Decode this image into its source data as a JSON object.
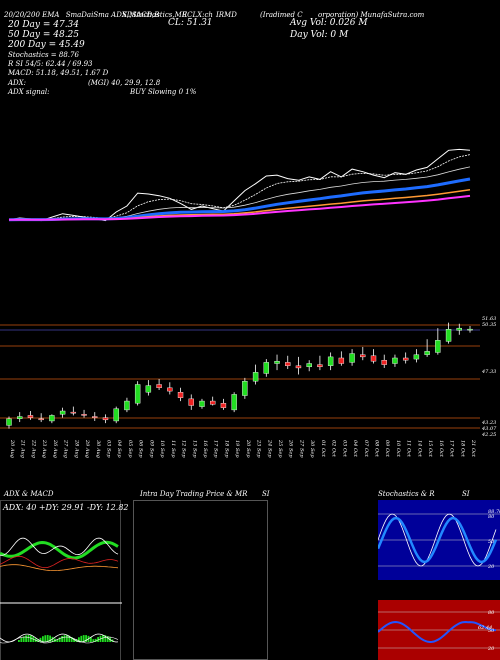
{
  "header": {
    "line1": "20/20/200 EMA",
    "line1_b": "SmaDaiSma ADX,MACD,B",
    "line1_c": "SI,Stochastics,MR",
    "line1_d": "ECLX:ch",
    "line1_e": "IRMD",
    "line1_f": "(Iradimed C",
    "line1_g": "orporation) MunafaSutra.com",
    "cl": "CL: 51.31",
    "ema20": "20 Day = 47.34",
    "ema50": "50 Day = 48.25",
    "ema200": "200 Day = 45.49",
    "stoch": "Stochastics = 88.76",
    "rsi": "R        SI 54/5: 62.44 / 69.93",
    "macd": "MACD: 51.18, 49.51, 1.67 D",
    "adx": "ADX:",
    "adx_vals": "(MGI) 40, 29.9, 12.8",
    "adx_signal": "ADX  signal:",
    "signal": "BUY Slowing 0 1%",
    "avg_vol": "Avg Vol: 0.026  M",
    "day_vol": "Day Vol: 0   M"
  },
  "price_labels": {
    "p1": "51.63",
    "p2": "50.35",
    "p3": "47.33",
    "p4": "43.23",
    "p5": "43.07",
    "p6": "42.25"
  },
  "dates": [
    "20 Aug",
    "21 Aug",
    "22 Aug",
    "23 Aug",
    "26 Aug",
    "27 Aug",
    "28 Aug",
    "29 Aug",
    "30 Aug",
    "03 Sep",
    "04 Sep",
    "05 Sep",
    "06 Sep",
    "09 Sep",
    "10 Sep",
    "11 Sep",
    "12 Sep",
    "13 Sep",
    "16 Sep",
    "17 Sep",
    "18 Sep",
    "19 Sep",
    "20 Sep",
    "23 Sep",
    "24 Sep",
    "25 Sep",
    "26 Sep",
    "27 Sep",
    "30 Sep",
    "01 Oct",
    "02 Oct",
    "03 Oct",
    "04 Oct",
    "07 Oct",
    "08 Oct",
    "09 Oct",
    "10 Oct",
    "11 Oct",
    "14 Oct",
    "15 Oct",
    "16 Oct",
    "17 Oct",
    "18 Oct",
    "21 Oct"
  ],
  "panels": {
    "adx_title": "ADX  & MACD",
    "adx_text": "ADX: 40  +DY: 29.91  -DY: 12.82",
    "intraday_title": "Intra  Day Trading Price  & MR",
    "intraday_si": "SI",
    "stoch_title": "Stochastics & R",
    "stoch_si": "SI",
    "stoch_levels": [
      "88.76",
      "80",
      "50",
      "20"
    ],
    "rsi_levels": [
      "80",
      "62.44",
      "50",
      "20"
    ]
  },
  "chart_data": {
    "type": "candlestick",
    "title": "IRMD (Iradimed Corporation)",
    "categories": [
      "20 Aug",
      "21 Aug",
      "22 Aug",
      "23 Aug",
      "26 Aug",
      "27 Aug",
      "28 Aug",
      "29 Aug",
      "30 Aug",
      "03 Sep",
      "04 Sep",
      "05 Sep",
      "06 Sep",
      "09 Sep",
      "10 Sep",
      "11 Sep",
      "12 Sep",
      "13 Sep",
      "16 Sep",
      "17 Sep",
      "18 Sep",
      "19 Sep",
      "20 Sep",
      "23 Sep",
      "24 Sep",
      "25 Sep",
      "26 Sep",
      "27 Sep",
      "30 Sep",
      "01 Oct",
      "02 Oct",
      "03 Oct",
      "04 Oct",
      "07 Oct",
      "08 Oct",
      "09 Oct",
      "10 Oct",
      "11 Oct",
      "14 Oct",
      "15 Oct",
      "16 Oct",
      "17 Oct",
      "18 Oct",
      "21 Oct"
    ],
    "open": [
      42.6,
      43.2,
      43.5,
      43.2,
      43.0,
      43.6,
      43.8,
      43.6,
      43.4,
      43.3,
      43.0,
      44.0,
      44.6,
      45.6,
      46.3,
      46.0,
      45.6,
      45.0,
      44.3,
      44.8,
      44.6,
      44.0,
      45.3,
      46.6,
      47.3,
      48.2,
      48.3,
      48.0,
      47.9,
      48.1,
      48.0,
      48.7,
      48.3,
      49.0,
      48.9,
      48.5,
      48.2,
      48.7,
      48.6,
      49.0,
      49.2,
      50.2,
      51.2,
      51.3
    ],
    "high": [
      43.4,
      43.8,
      43.9,
      43.7,
      43.6,
      44.2,
      44.3,
      44.0,
      43.8,
      43.6,
      44.3,
      45.1,
      46.6,
      46.7,
      46.8,
      46.5,
      46.0,
      45.4,
      45.0,
      45.2,
      45.0,
      45.6,
      46.9,
      48.1,
      48.6,
      49.0,
      48.9,
      48.8,
      48.5,
      48.9,
      49.2,
      49.3,
      49.5,
      49.7,
      49.5,
      49.0,
      49.0,
      49.2,
      49.5,
      50.4,
      51.4,
      51.9,
      51.8,
      51.6
    ],
    "low": [
      42.3,
      42.9,
      43.1,
      42.9,
      42.8,
      43.3,
      43.5,
      43.3,
      43.0,
      42.8,
      42.8,
      43.8,
      44.4,
      45.3,
      45.8,
      45.4,
      44.8,
      44.0,
      44.1,
      44.4,
      44.0,
      43.8,
      45.0,
      46.3,
      47.0,
      47.6,
      47.7,
      47.2,
      47.5,
      47.6,
      47.6,
      48.0,
      48.0,
      48.5,
      48.2,
      47.8,
      47.9,
      48.2,
      48.3,
      48.8,
      49.0,
      50.0,
      50.8,
      51.0
    ],
    "close": [
      43.2,
      43.4,
      43.3,
      43.1,
      43.5,
      43.9,
      43.7,
      43.5,
      43.3,
      43.1,
      44.1,
      44.8,
      46.3,
      46.2,
      46.0,
      45.7,
      45.1,
      44.4,
      44.8,
      44.5,
      44.2,
      45.4,
      46.6,
      47.4,
      48.3,
      48.4,
      48.0,
      47.8,
      48.2,
      47.9,
      48.8,
      48.2,
      49.1,
      48.8,
      48.4,
      48.1,
      48.7,
      48.5,
      49.0,
      49.3,
      50.3,
      51.3,
      51.4,
      51.31
    ],
    "ylim": [
      42,
      52.5
    ],
    "ema": [
      {
        "name": "20 Day",
        "color": "#ffffff"
      },
      {
        "name": "50 Day",
        "color": "#1e6cff"
      },
      {
        "name": "200 Day",
        "color": "#ff9933"
      }
    ]
  },
  "colors": {
    "up": "#22dd22",
    "down": "#ee2222",
    "orange_line": "#cc5511",
    "stoch_bg": "#000099",
    "rsi_bg": "#aa0000",
    "blue": "#2255ff"
  }
}
